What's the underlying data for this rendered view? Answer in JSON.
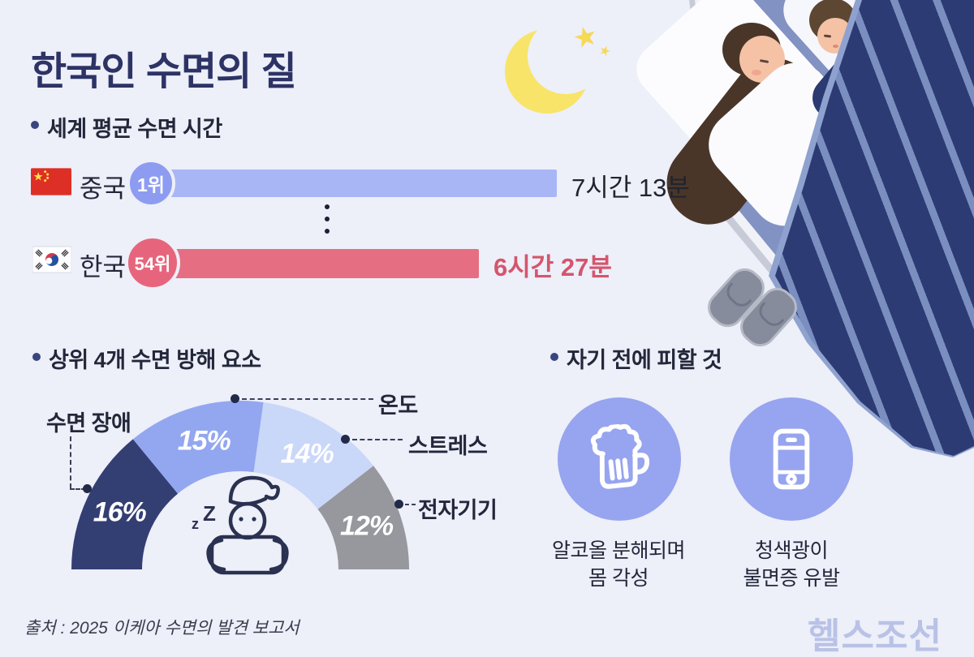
{
  "header": {
    "title": "한국인 수면의 질"
  },
  "sleep_ranking": {
    "heading": "세계 평균 수면 시간",
    "rows": [
      {
        "country": "중국",
        "flag": "china-flag",
        "rank": "1위",
        "time_label": "7시간 13분",
        "minutes": 433,
        "bar_color": "#a9b6f6"
      },
      {
        "country": "한국",
        "flag": "korea-flag",
        "rank": "54위",
        "time_label": "6시간 27분",
        "minutes": 387,
        "bar_color": "#e66e82"
      }
    ]
  },
  "chart_data": {
    "type": "pie",
    "variant": "semicircle-donut",
    "title": "상위 4개 수면 방해 요소",
    "unit": "%",
    "segments": [
      {
        "label": "수면 장애",
        "value": 16,
        "display": "16%",
        "color": "#333e73"
      },
      {
        "label": "온도",
        "value": 15,
        "display": "15%",
        "color": "#93a7f0"
      },
      {
        "label": "스트레스",
        "value": 14,
        "display": "14%",
        "color": "#c9d7f9"
      },
      {
        "label": "전자기기",
        "value": 12,
        "display": "12%",
        "color": "#97979e"
      }
    ],
    "legend_position": "callout-labels",
    "center_art": "sleeping-person-hugging-pillow-icon"
  },
  "avoid": {
    "heading": "자기 전에 피할 것",
    "items": [
      {
        "icon": "beer-mug-icon",
        "line1": "알코올 분해되며",
        "line2": "몸 각성"
      },
      {
        "icon": "smartphone-icon",
        "line1": "청색광이",
        "line2": "불면증 유발"
      }
    ]
  },
  "footer": {
    "source": "출처 : 2025 이케아 수면의 발견 보고서",
    "publisher_logo": "헬스조선"
  },
  "colors": {
    "background": "#edeff9",
    "title": "#2d3365",
    "china_bar": "#a9b6f6",
    "china_badge": "#8d9cf1",
    "korea_bar": "#e66e82",
    "korea_badge": "#e7657c",
    "korea_time_text": "#d4566d",
    "avoid_circle": "#97a4ef",
    "moon": "#f8e468",
    "logo": "#b9c2e6"
  }
}
